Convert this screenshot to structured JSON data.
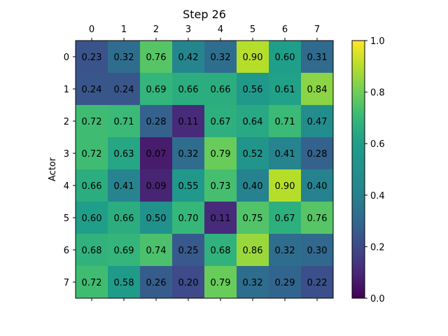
{
  "chart_data": {
    "type": "heatmap",
    "title": "Step 26",
    "ylabel": "Actor",
    "xlabel": "",
    "x_categories": [
      "0",
      "1",
      "2",
      "3",
      "4",
      "5",
      "6",
      "7"
    ],
    "y_categories": [
      "0",
      "1",
      "2",
      "3",
      "4",
      "5",
      "6",
      "7"
    ],
    "x_axis_position": "top",
    "values": [
      [
        0.23,
        0.32,
        0.76,
        0.42,
        0.32,
        0.9,
        0.6,
        0.31
      ],
      [
        0.24,
        0.24,
        0.69,
        0.66,
        0.66,
        0.56,
        0.61,
        0.84
      ],
      [
        0.72,
        0.71,
        0.28,
        0.11,
        0.67,
        0.64,
        0.71,
        0.47
      ],
      [
        0.72,
        0.63,
        0.07,
        0.32,
        0.79,
        0.52,
        0.41,
        0.28
      ],
      [
        0.66,
        0.41,
        0.09,
        0.55,
        0.73,
        0.4,
        0.9,
        0.4
      ],
      [
        0.6,
        0.66,
        0.5,
        0.7,
        0.11,
        0.75,
        0.67,
        0.76
      ],
      [
        0.68,
        0.69,
        0.74,
        0.25,
        0.68,
        0.86,
        0.32,
        0.3
      ],
      [
        0.72,
        0.58,
        0.26,
        0.2,
        0.79,
        0.32,
        0.29,
        0.22
      ]
    ],
    "colormap": "viridis",
    "vmin": 0.0,
    "vmax": 1.0,
    "colorbar_ticks": [
      "0.0",
      "0.2",
      "0.4",
      "0.6",
      "0.8",
      "1.0"
    ],
    "grid": false
  }
}
